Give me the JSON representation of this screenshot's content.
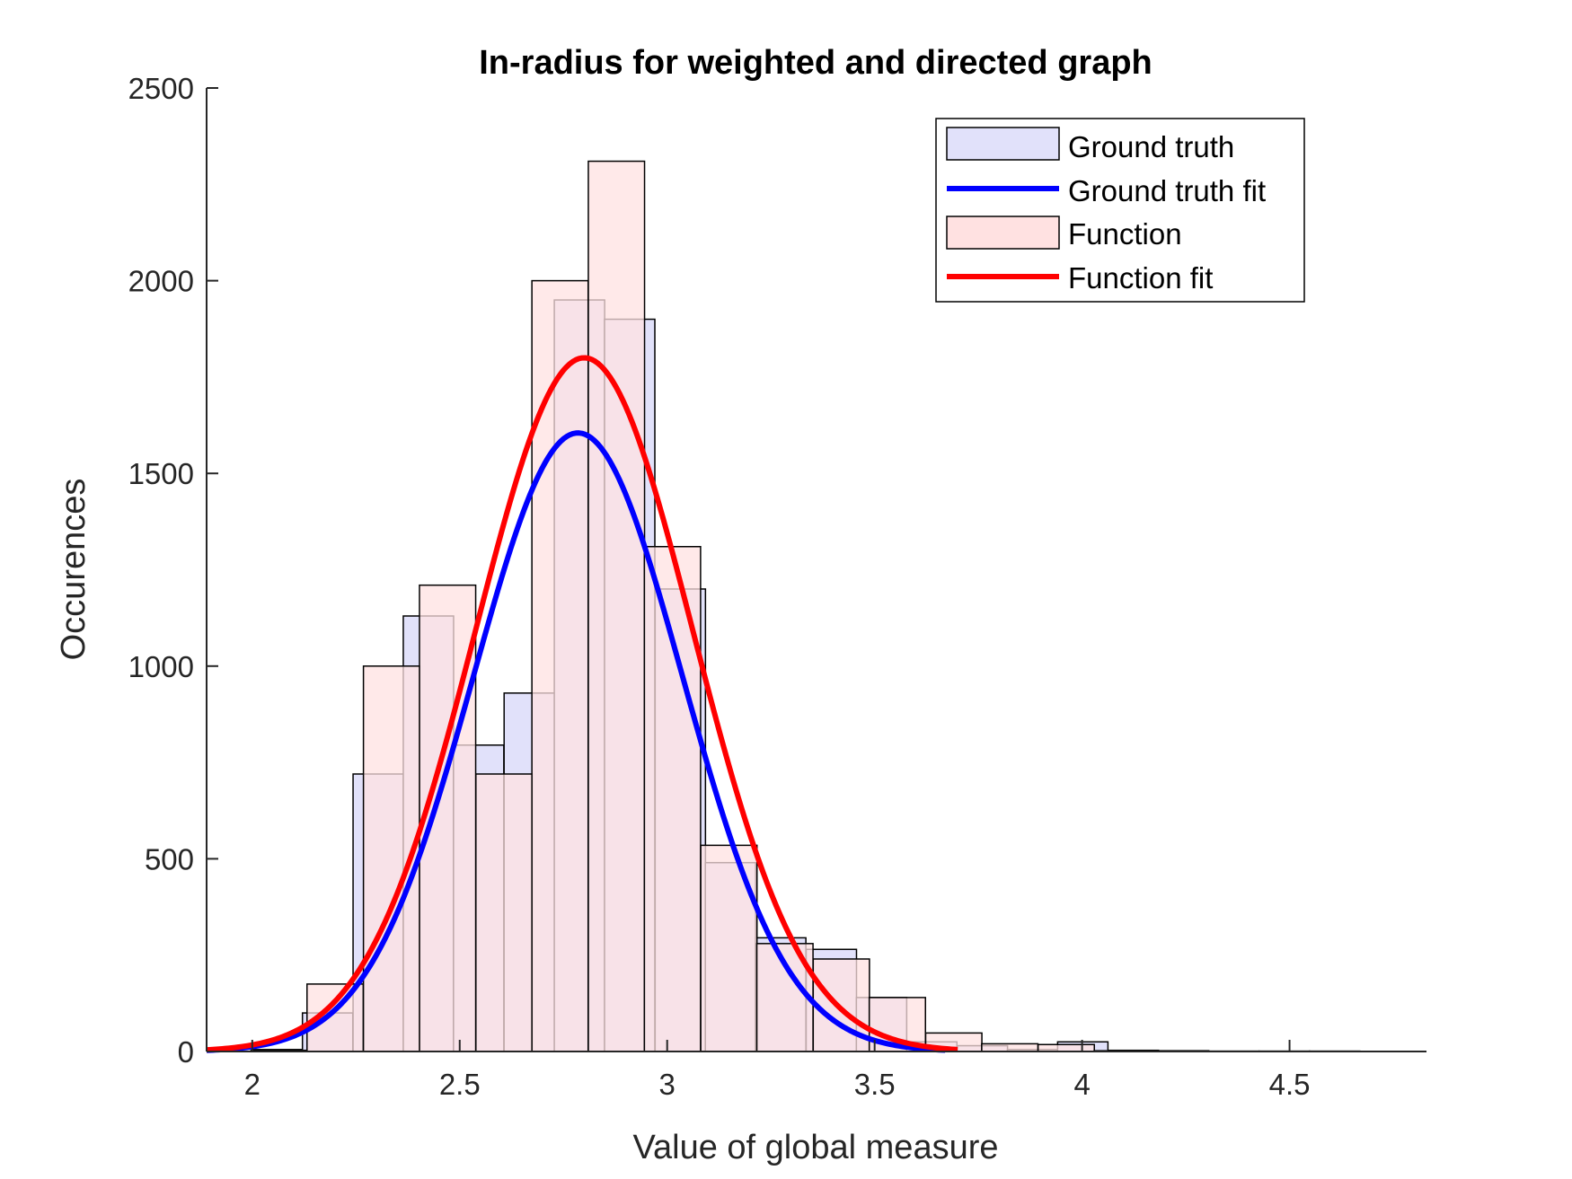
{
  "chart_data": {
    "type": "histogram",
    "title": "In-radius for weighted and directed graph",
    "xlabel": "Value of global measure",
    "ylabel": "Occurences",
    "xlim": [
      1.89,
      4.83
    ],
    "ylim": [
      0,
      2500
    ],
    "xticks": [
      {
        "value": 2,
        "label": "2"
      },
      {
        "value": 2.5,
        "label": "2.5"
      },
      {
        "value": 3,
        "label": "3"
      },
      {
        "value": 3.5,
        "label": "3.5"
      },
      {
        "value": 4,
        "label": "4"
      },
      {
        "value": 4.5,
        "label": "4.5"
      }
    ],
    "yticks": [
      {
        "value": 0,
        "label": "0"
      },
      {
        "value": 500,
        "label": "500"
      },
      {
        "value": 1000,
        "label": "1000"
      },
      {
        "value": 1500,
        "label": "1500"
      },
      {
        "value": 2000,
        "label": "2000"
      },
      {
        "value": 2500,
        "label": "2500"
      }
    ],
    "grid": false,
    "legend_position": "top-right",
    "series": [
      {
        "name": "Ground truth",
        "kind": "histogram",
        "color": "#e1e1fa",
        "bin_width": 0.1213,
        "bins": [
          {
            "x0": 2.0,
            "value": 5
          },
          {
            "x0": 2.121,
            "value": 100
          },
          {
            "x0": 2.243,
            "value": 720
          },
          {
            "x0": 2.364,
            "value": 1130
          },
          {
            "x0": 2.485,
            "value": 795
          },
          {
            "x0": 2.607,
            "value": 930
          },
          {
            "x0": 2.728,
            "value": 1950
          },
          {
            "x0": 2.849,
            "value": 1900
          },
          {
            "x0": 2.971,
            "value": 1200
          },
          {
            "x0": 3.092,
            "value": 490
          },
          {
            "x0": 3.213,
            "value": 295
          },
          {
            "x0": 3.335,
            "value": 265
          },
          {
            "x0": 3.456,
            "value": 140
          },
          {
            "x0": 3.577,
            "value": 25
          },
          {
            "x0": 3.699,
            "value": 15
          },
          {
            "x0": 3.82,
            "value": 5
          },
          {
            "x0": 3.941,
            "value": 25
          },
          {
            "x0": 4.063,
            "value": 3
          },
          {
            "x0": 4.184,
            "value": 2
          },
          {
            "x0": 4.305,
            "value": 1
          },
          {
            "x0": 4.427,
            "value": 1
          },
          {
            "x0": 4.548,
            "value": 1
          }
        ]
      },
      {
        "name": "Ground truth fit",
        "kind": "line",
        "color": "#0000ff",
        "fit": {
          "distribution": "normal",
          "mu": 2.785,
          "sigma": 0.252,
          "peak": 1605
        },
        "x_range": [
          1.89,
          3.67
        ]
      },
      {
        "name": "Function",
        "kind": "histogram",
        "color": "#ffe1e1",
        "bin_width": 0.1355,
        "bins": [
          {
            "x0": 1.997,
            "value": 3
          },
          {
            "x0": 2.132,
            "value": 175
          },
          {
            "x0": 2.268,
            "value": 1000
          },
          {
            "x0": 2.403,
            "value": 1210
          },
          {
            "x0": 2.539,
            "value": 720
          },
          {
            "x0": 2.674,
            "value": 2000
          },
          {
            "x0": 2.81,
            "value": 2310
          },
          {
            "x0": 2.945,
            "value": 1310
          },
          {
            "x0": 3.081,
            "value": 535
          },
          {
            "x0": 3.216,
            "value": 280
          },
          {
            "x0": 3.352,
            "value": 240
          },
          {
            "x0": 3.487,
            "value": 140
          },
          {
            "x0": 3.623,
            "value": 48
          },
          {
            "x0": 3.758,
            "value": 20
          },
          {
            "x0": 3.894,
            "value": 18
          },
          {
            "x0": 4.029,
            "value": 2
          }
        ]
      },
      {
        "name": "Function fit",
        "kind": "line",
        "color": "#ff0000",
        "fit": {
          "distribution": "normal",
          "mu": 2.8,
          "sigma": 0.262,
          "peak": 1800
        },
        "x_range": [
          1.89,
          3.7
        ]
      }
    ]
  }
}
